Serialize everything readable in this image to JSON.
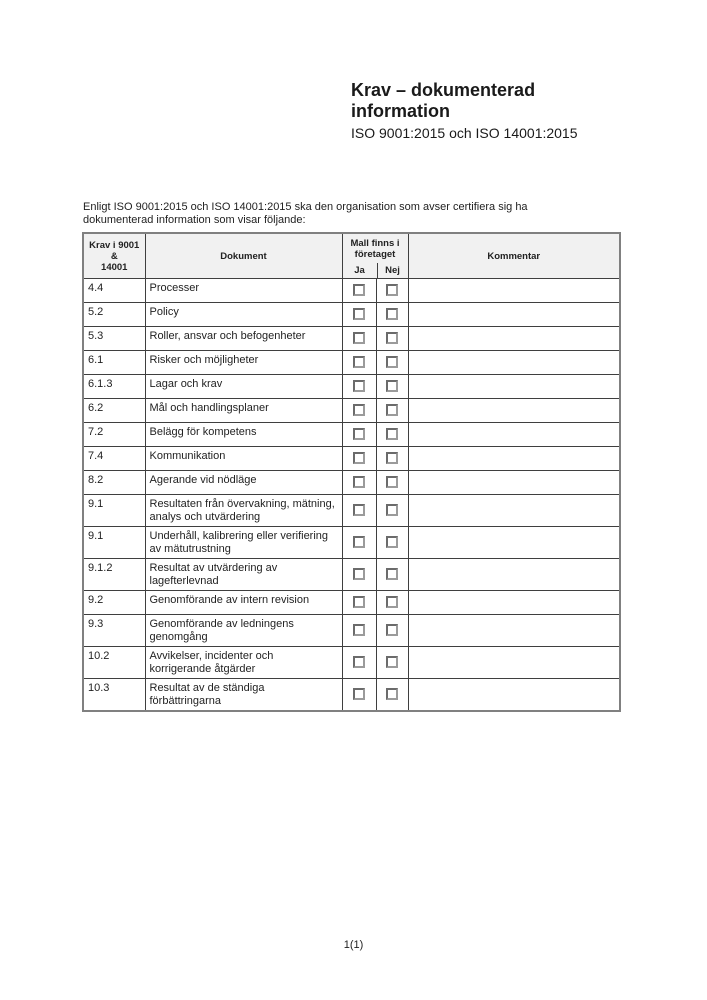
{
  "header": {
    "title": "Krav – dokumenterad information",
    "subtitle": "ISO 9001:2015 och ISO 14001:2015"
  },
  "intro": {
    "text": "Enligt ISO 9001:2015 och ISO 14001:2015 ska den organisation som avser certifiera sig ha dokumenterad information som visar följande:"
  },
  "table": {
    "headers": {
      "krav": {
        "lines": [
          "Krav i 9001 &",
          "14001"
        ]
      },
      "dokument": "Dokument",
      "mall": {
        "lines": [
          "Mall finns i",
          "företaget"
        ]
      },
      "ja": "Ja",
      "nej": "Nej",
      "kommentar": "Kommentar"
    },
    "rows": [
      {
        "clause": "4.4",
        "dokument": "Processer",
        "ja": false,
        "nej": false,
        "kommentar": ""
      },
      {
        "clause": "5.2",
        "dokument": "Policy",
        "ja": false,
        "nej": false,
        "kommentar": ""
      },
      {
        "clause": "5.3",
        "dokument": "Roller, ansvar och befogenheter",
        "ja": false,
        "nej": false,
        "kommentar": ""
      },
      {
        "clause": "6.1",
        "dokument": "Risker och möjligheter",
        "ja": false,
        "nej": false,
        "kommentar": ""
      },
      {
        "clause": "6.1.3",
        "dokument": "Lagar och krav",
        "ja": false,
        "nej": false,
        "kommentar": ""
      },
      {
        "clause": "6.2",
        "dokument": "Mål och handlingsplaner",
        "ja": false,
        "nej": false,
        "kommentar": ""
      },
      {
        "clause": "7.2",
        "dokument": "Belägg för kompetens",
        "ja": false,
        "nej": false,
        "kommentar": ""
      },
      {
        "clause": "7.4",
        "dokument": "Kommunikation",
        "ja": false,
        "nej": false,
        "kommentar": ""
      },
      {
        "clause": "8.2",
        "dokument": "Agerande vid nödläge",
        "ja": false,
        "nej": false,
        "kommentar": ""
      },
      {
        "clause": "9.1",
        "dokument": "Resultaten från övervakning, mätning, analys och utvärdering",
        "ja": false,
        "nej": false,
        "kommentar": ""
      },
      {
        "clause": "9.1",
        "dokument": "Underhåll, kalibrering eller verifiering av mätutrustning",
        "ja": false,
        "nej": false,
        "kommentar": ""
      },
      {
        "clause": "9.1.2",
        "dokument": "Resultat av utvärdering av lagefterlevnad",
        "ja": false,
        "nej": false,
        "kommentar": ""
      },
      {
        "clause": "9.2",
        "dokument": "Genomförande av intern revision",
        "ja": false,
        "nej": false,
        "kommentar": ""
      },
      {
        "clause": "9.3",
        "dokument": "Genomförande av ledningens genomgång",
        "ja": false,
        "nej": false,
        "kommentar": ""
      },
      {
        "clause": "10.2",
        "dokument": "Avvikelser, incidenter och korrigerande åtgärder",
        "ja": false,
        "nej": false,
        "kommentar": ""
      },
      {
        "clause": "10.3",
        "dokument": "Resultat av de ständiga förbättringarna",
        "ja": false,
        "nej": false,
        "kommentar": ""
      }
    ]
  },
  "footer": {
    "page_label": "1(1)"
  }
}
